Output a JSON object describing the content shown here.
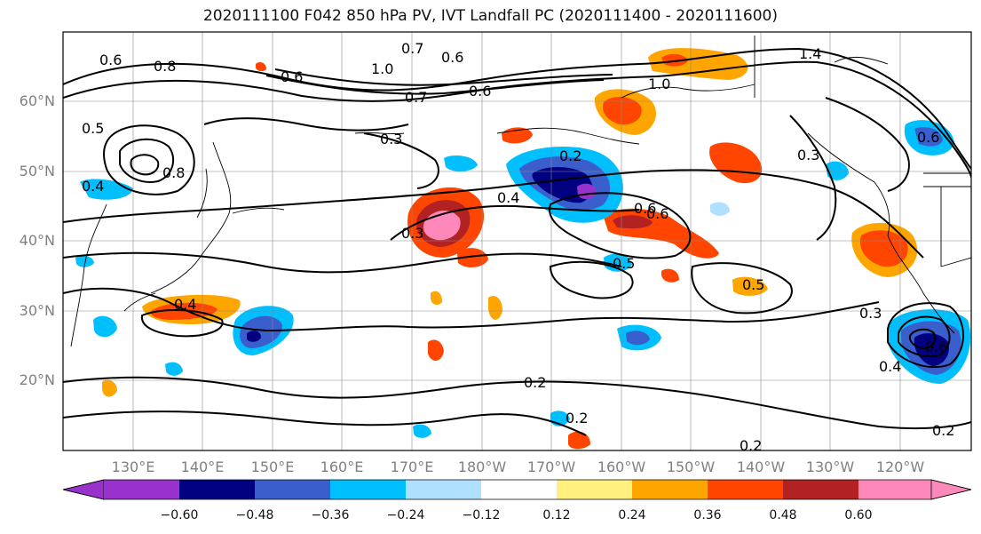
{
  "title": "2020111100 F042 850 hPa PV, IVT Landfall PC (2020111400 - 2020111600)",
  "map": {
    "latitude_labels": [
      "60°N",
      "50°N",
      "40°N",
      "30°N",
      "20°N"
    ],
    "longitude_labels": [
      "130°E",
      "140°E",
      "150°E",
      "160°E",
      "170°E",
      "180°W",
      "170°W",
      "160°W",
      "150°W",
      "140°W",
      "130°W",
      "120°W"
    ],
    "contour_labels": [
      "0.6",
      "0.8",
      "0.6",
      "0.7",
      "0.6",
      "1.0",
      "0.7",
      "0.6",
      "1.0",
      "1.4",
      "0.5",
      "0.4",
      "0.8",
      "0.3",
      "0.2",
      "0.3",
      "0.4",
      "0.3",
      "0.6",
      "0.6",
      "0.5",
      "0.5",
      "0.4",
      "0.3",
      "0.6",
      "0.4",
      "0.2",
      "0.2",
      "0.2",
      "0.2",
      "0.6"
    ],
    "colorbar": {
      "colors": [
        "#9932cc",
        "#000080",
        "#3a5fcd",
        "#00bfff",
        "#b0e0ff",
        "#ffffff",
        "#fff080",
        "#ffa500",
        "#ff4500",
        "#b22222",
        "#ff88bb"
      ],
      "tick_labels": [
        "−0.60",
        "−0.48",
        "−0.36",
        "−0.24",
        "−0.12",
        "0.12",
        "0.24",
        "0.36",
        "0.48",
        "0.60"
      ]
    }
  }
}
